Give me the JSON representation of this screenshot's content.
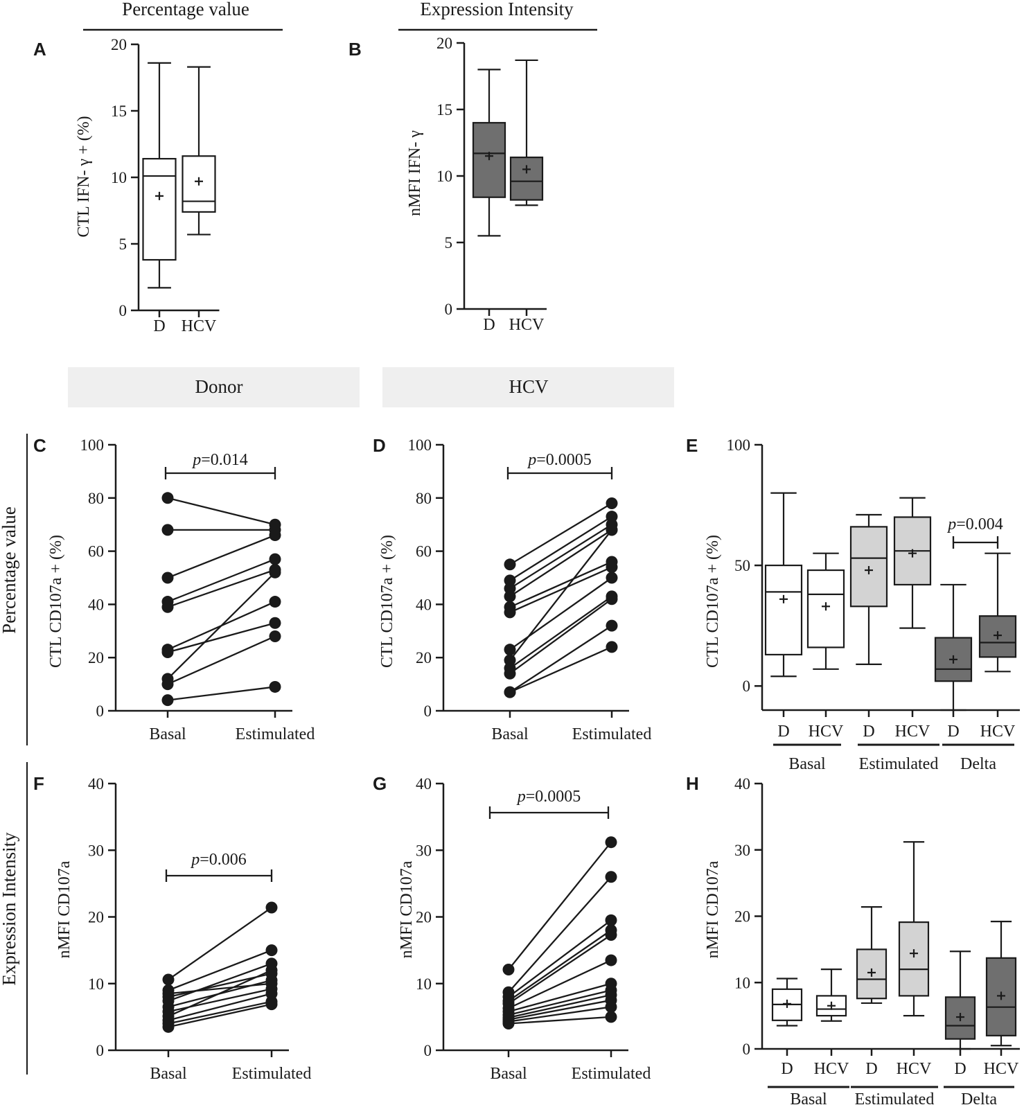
{
  "section_headers": {
    "top_left": "Percentage value",
    "top_right": "Expression Intensity",
    "donor_band": "Donor",
    "hcv_band": "HCV",
    "row_percentage": "Percentage value",
    "row_intensity": "Expression Intensity"
  },
  "colors": {
    "white": "#ffffff",
    "light_gray": "#d3d3d3",
    "dark_gray": "#6f6f6f",
    "band_gray": "#efefef",
    "ink": "#1a1a1a"
  },
  "chart_data": [
    {
      "id": "A",
      "type": "box",
      "letter": "A",
      "ylabel": "CTL IFN- γ + (%)",
      "ylim": [
        0,
        20
      ],
      "yticks": [
        0,
        5,
        10,
        15,
        20
      ],
      "categories": [
        "D",
        "HCV"
      ],
      "boxes": [
        {
          "name": "D",
          "min": 1.7,
          "q1": 3.8,
          "median": 10.1,
          "q3": 11.4,
          "max": 18.6,
          "mean": 8.6,
          "fill": "white"
        },
        {
          "name": "HCV",
          "min": 5.7,
          "q1": 7.4,
          "median": 8.2,
          "q3": 11.6,
          "max": 18.3,
          "mean": 9.7,
          "fill": "white"
        }
      ]
    },
    {
      "id": "B",
      "type": "box",
      "letter": "B",
      "ylabel": "nMFI IFN- γ",
      "ylim": [
        0,
        20
      ],
      "yticks": [
        0,
        5,
        10,
        15,
        20
      ],
      "categories": [
        "D",
        "HCV"
      ],
      "boxes": [
        {
          "name": "D",
          "min": 5.5,
          "q1": 8.4,
          "median": 11.7,
          "q3": 14.0,
          "max": 18.0,
          "mean": 11.5,
          "fill": "dark_gray"
        },
        {
          "name": "HCV",
          "min": 7.8,
          "q1": 8.2,
          "median": 9.6,
          "q3": 11.4,
          "max": 18.7,
          "mean": 10.5,
          "fill": "dark_gray"
        }
      ]
    },
    {
      "id": "C",
      "type": "paired",
      "letter": "C",
      "ylabel": "CTL CD107a + (%)",
      "ylim": [
        0,
        100
      ],
      "yticks": [
        0,
        20,
        40,
        60,
        80,
        100
      ],
      "categories": [
        "Basal",
        "Estimulated"
      ],
      "p_value": "=0.014",
      "pairs": [
        [
          80,
          70
        ],
        [
          68,
          68
        ],
        [
          50,
          66
        ],
        [
          41,
          57
        ],
        [
          39,
          53
        ],
        [
          23,
          41
        ],
        [
          22,
          33
        ],
        [
          12,
          52
        ],
        [
          10,
          28
        ],
        [
          4,
          9
        ]
      ]
    },
    {
      "id": "D",
      "type": "paired",
      "letter": "D",
      "ylabel": "CTL CD107a + (%)",
      "ylim": [
        0,
        100
      ],
      "yticks": [
        0,
        20,
        40,
        60,
        80,
        100
      ],
      "categories": [
        "Basal",
        "Estimulated"
      ],
      "p_value": "=0.0005",
      "pairs": [
        [
          55,
          78
        ],
        [
          49,
          73
        ],
        [
          46,
          70
        ],
        [
          43,
          68
        ],
        [
          39,
          56
        ],
        [
          37,
          54
        ],
        [
          23,
          50
        ],
        [
          19,
          68
        ],
        [
          16,
          43
        ],
        [
          14,
          42
        ],
        [
          7,
          32
        ],
        [
          7,
          24
        ]
      ]
    },
    {
      "id": "E",
      "type": "box",
      "letter": "E",
      "ylabel": "CTL CD107a + (%)",
      "ylim": [
        -10,
        100
      ],
      "yticks": [
        0,
        50,
        100
      ],
      "categories": [
        "D",
        "HCV",
        "D",
        "HCV",
        "D",
        "HCV"
      ],
      "groups": [
        "Basal",
        "Estimulated",
        "Delta"
      ],
      "p_value": "=0.004",
      "boxes": [
        {
          "name": "D",
          "min": 4,
          "q1": 13,
          "median": 39,
          "q3": 50,
          "max": 80,
          "mean": 36,
          "fill": "white"
        },
        {
          "name": "HCV",
          "min": 7,
          "q1": 16,
          "median": 38,
          "q3": 48,
          "max": 55,
          "mean": 33,
          "fill": "white"
        },
        {
          "name": "D",
          "min": 9,
          "q1": 33,
          "median": 53,
          "q3": 66,
          "max": 71,
          "mean": 48,
          "fill": "light_gray"
        },
        {
          "name": "HCV",
          "min": 24,
          "q1": 42,
          "median": 56,
          "q3": 70,
          "max": 78,
          "mean": 55,
          "fill": "light_gray"
        },
        {
          "name": "D",
          "min": -10,
          "q1": 2,
          "median": 7,
          "q3": 20,
          "max": 42,
          "mean": 11,
          "fill": "dark_gray"
        },
        {
          "name": "HCV",
          "min": 6,
          "q1": 12,
          "median": 18,
          "q3": 29,
          "max": 55,
          "mean": 21,
          "fill": "dark_gray"
        }
      ]
    },
    {
      "id": "F",
      "type": "paired",
      "letter": "F",
      "ylabel": "nMFI CD107a",
      "ylim": [
        0,
        40
      ],
      "yticks": [
        0,
        10,
        20,
        30,
        40
      ],
      "categories": [
        "Basal",
        "Estimulated"
      ],
      "p_value": "=0.006",
      "pairs": [
        [
          10.6,
          21.4
        ],
        [
          9.0,
          15.0
        ],
        [
          8.5,
          10.0
        ],
        [
          8.0,
          11.5
        ],
        [
          7.4,
          13.0
        ],
        [
          6.5,
          10.5
        ],
        [
          5.8,
          9.2
        ],
        [
          5.1,
          12.0
        ],
        [
          4.5,
          8.5
        ],
        [
          4.0,
          7.3
        ],
        [
          3.5,
          6.9
        ]
      ]
    },
    {
      "id": "G",
      "type": "paired",
      "letter": "G",
      "ylabel": "nMFI CD107a",
      "ylim": [
        0,
        40
      ],
      "yticks": [
        0,
        10,
        20,
        30,
        40
      ],
      "categories": [
        "Basal",
        "Estimulated"
      ],
      "p_value": "=0.0005",
      "pairs": [
        [
          12.1,
          31.2
        ],
        [
          8.7,
          26.0
        ],
        [
          8.0,
          19.5
        ],
        [
          7.4,
          18.0
        ],
        [
          7.0,
          17.3
        ],
        [
          6.3,
          13.5
        ],
        [
          5.8,
          10.0
        ],
        [
          5.3,
          9.0
        ],
        [
          4.9,
          8.3
        ],
        [
          4.6,
          7.5
        ],
        [
          4.3,
          6.5
        ],
        [
          4.0,
          5.0
        ]
      ]
    },
    {
      "id": "H",
      "type": "box",
      "letter": "H",
      "ylabel": "nMFI CD107a",
      "ylim": [
        0,
        40
      ],
      "yticks": [
        0,
        10,
        20,
        30,
        40
      ],
      "categories": [
        "D",
        "HCV",
        "D",
        "HCV",
        "D",
        "HCV"
      ],
      "groups": [
        "Basal",
        "Estimulated",
        "Delta"
      ],
      "boxes": [
        {
          "name": "D",
          "min": 3.5,
          "q1": 4.3,
          "median": 6.7,
          "q3": 9.0,
          "max": 10.6,
          "mean": 6.8,
          "fill": "white"
        },
        {
          "name": "HCV",
          "min": 4.2,
          "q1": 5.0,
          "median": 6.0,
          "q3": 8.0,
          "max": 12.0,
          "mean": 6.5,
          "fill": "white"
        },
        {
          "name": "D",
          "min": 6.9,
          "q1": 7.6,
          "median": 10.5,
          "q3": 15.0,
          "max": 21.4,
          "mean": 11.5,
          "fill": "light_gray"
        },
        {
          "name": "HCV",
          "min": 5.0,
          "q1": 8.0,
          "median": 12.0,
          "q3": 19.1,
          "max": 31.2,
          "mean": 14.4,
          "fill": "light_gray"
        },
        {
          "name": "D",
          "min": 0,
          "q1": 1.5,
          "median": 3.5,
          "q3": 7.8,
          "max": 14.7,
          "mean": 4.8,
          "fill": "dark_gray"
        },
        {
          "name": "HCV",
          "min": 0.5,
          "q1": 2.0,
          "median": 6.3,
          "q3": 13.7,
          "max": 19.2,
          "mean": 8.0,
          "fill": "dark_gray"
        }
      ]
    }
  ]
}
